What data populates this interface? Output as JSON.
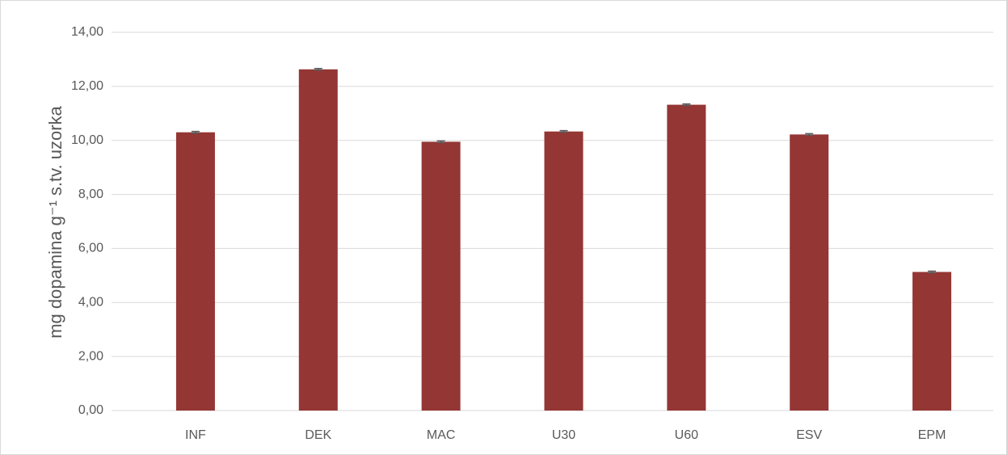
{
  "chart_data": {
    "type": "bar",
    "y_axis_label": "mg dopamina g⁻¹ s.tv. uzorka",
    "categories": [
      "INF",
      "DEK",
      "MAC",
      "U30",
      "U60",
      "ESV",
      "EPM"
    ],
    "values": [
      10.3,
      12.63,
      9.95,
      10.33,
      11.32,
      10.22,
      5.13
    ],
    "errors": [
      0.03,
      0.03,
      0.03,
      0.03,
      0.03,
      0.03,
      0.03
    ],
    "color": "#943634",
    "error_color": "#595959",
    "ylim": [
      0,
      14
    ],
    "yticks": [
      {
        "value": 0,
        "label": "0,00"
      },
      {
        "value": 2,
        "label": "2,00"
      },
      {
        "value": 4,
        "label": "4,00"
      },
      {
        "value": 6,
        "label": "6,00"
      },
      {
        "value": 8,
        "label": "8,00"
      },
      {
        "value": 10,
        "label": "10,00"
      },
      {
        "value": 12,
        "label": "12,00"
      },
      {
        "value": 14,
        "label": "14,00"
      }
    ],
    "grid": true
  }
}
